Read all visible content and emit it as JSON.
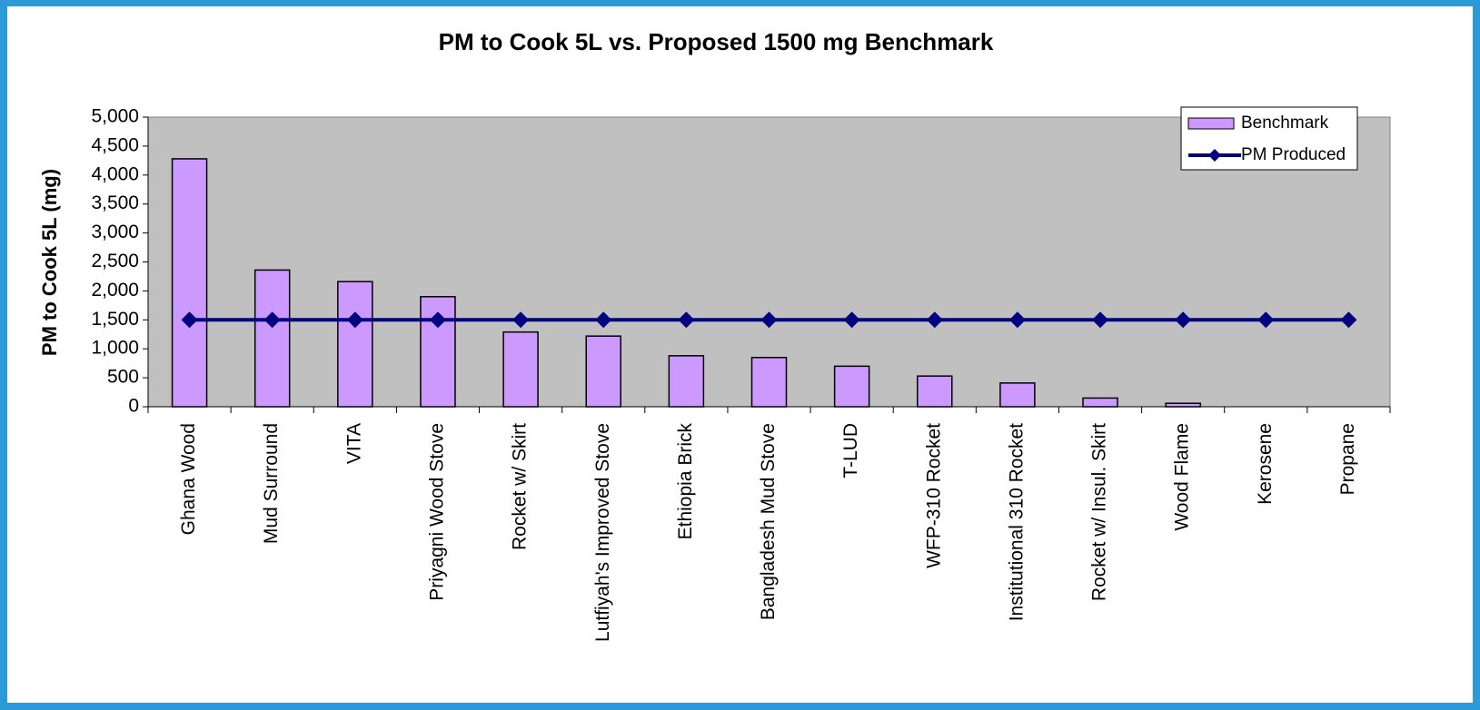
{
  "chart_data": {
    "type": "bar",
    "title": "PM to Cook 5L vs. Proposed 1500 mg Benchmark",
    "y_label": "PM to Cook 5L (mg)",
    "categories": [
      "Ghana Wood",
      "Mud Surround",
      "VITA",
      "Priyagni Wood Stove",
      "Rocket w/ Skirt",
      "Lutfiyah's Improved Stove",
      "Ethiopia Brick",
      "Bangladesh Mud Stove",
      "T-LUD",
      "WFP-310 Rocket",
      "Institutional 310 Rocket",
      "Rocket w/ Insul. Skirt",
      "Wood Flame",
      "Kerosene",
      "Propane"
    ],
    "series": [
      {
        "name": "Benchmark",
        "kind": "bar",
        "color": "#cc99ff",
        "values": [
          4280,
          2360,
          2160,
          1900,
          1290,
          1220,
          880,
          850,
          700,
          530,
          410,
          150,
          60,
          0,
          0
        ]
      },
      {
        "name": "PM Produced",
        "kind": "line",
        "color": "#000080",
        "values": [
          1500,
          1500,
          1500,
          1500,
          1500,
          1500,
          1500,
          1500,
          1500,
          1500,
          1500,
          1500,
          1500,
          1500,
          1500
        ]
      }
    ],
    "ylim": [
      0,
      5000
    ],
    "yticks": [
      0,
      500,
      {
        "value": 1000,
        "label": "1,000"
      },
      {
        "value": 1500,
        "label": "1,500"
      },
      {
        "value": 2000,
        "label": "2,000"
      },
      {
        "value": 2500,
        "label": "2,500"
      },
      {
        "value": 3000,
        "label": "3,000"
      },
      {
        "value": 3500,
        "label": "3,500"
      },
      {
        "value": 4000,
        "label": "4,000"
      },
      {
        "value": 4500,
        "label": "4,500"
      },
      {
        "value": 5000,
        "label": "5,000"
      }
    ],
    "legend": "top-right",
    "plot_background": "#c0c0c0"
  }
}
